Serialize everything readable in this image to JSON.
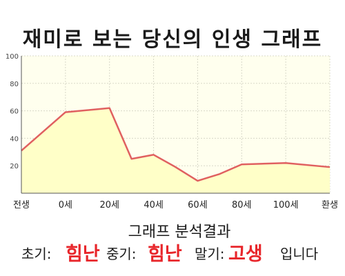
{
  "chart_data": {
    "type": "area",
    "title": "재미로 보는 당신의 인생 그래프",
    "xlabel": "",
    "ylabel": "",
    "categories": [
      "전생",
      "0세",
      "20세",
      "40세",
      "60세",
      "80세",
      "100세",
      "환생"
    ],
    "x": [
      -20,
      0,
      20,
      40,
      60,
      80,
      100,
      120
    ],
    "x_label_values": [
      -20,
      0,
      20,
      40,
      60,
      80,
      100,
      120
    ],
    "points_x": [
      -20,
      0,
      20,
      30,
      40,
      50,
      60,
      70,
      80,
      100,
      120
    ],
    "points_y": [
      31,
      59,
      62,
      25,
      28,
      19,
      9,
      14,
      21,
      22,
      19
    ],
    "ylim": [
      0,
      100
    ],
    "y_ticks": [
      20,
      40,
      60,
      80,
      100
    ],
    "grid": true,
    "colors": {
      "line": "#e06060",
      "fill": "#ffffc8",
      "plot_bg": "#ffffee",
      "grid": "#d8d8c8"
    }
  },
  "analysis": {
    "heading": "그래프 분석결과",
    "early_label": "초기:",
    "early_value": "힘난",
    "middle_label": "중기:",
    "middle_value": "힘난",
    "late_label": "말기:",
    "late_value": "고생",
    "suffix": "입니다"
  },
  "colors": {
    "highlight": "#e8262b"
  }
}
